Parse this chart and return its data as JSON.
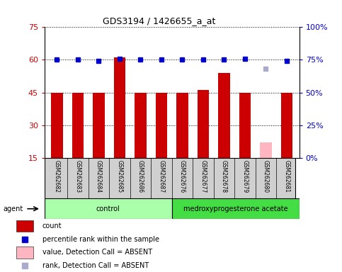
{
  "title": "GDS3194 / 1426655_a_at",
  "samples": [
    "GSM262682",
    "GSM262683",
    "GSM262684",
    "GSM262685",
    "GSM262686",
    "GSM262687",
    "GSM262676",
    "GSM262677",
    "GSM262678",
    "GSM262679",
    "GSM262680",
    "GSM262681"
  ],
  "bar_values": [
    45,
    45,
    45,
    61,
    45,
    45,
    45,
    46,
    54,
    45,
    22,
    45
  ],
  "bar_colors": [
    "#cc0000",
    "#cc0000",
    "#cc0000",
    "#cc0000",
    "#cc0000",
    "#cc0000",
    "#cc0000",
    "#cc0000",
    "#cc0000",
    "#cc0000",
    "#ffb6c1",
    "#cc0000"
  ],
  "rank_values": [
    75,
    75,
    74,
    76,
    75,
    75,
    75,
    75,
    75,
    76,
    68,
    74
  ],
  "rank_colors": [
    "#0000cc",
    "#0000cc",
    "#0000cc",
    "#0000cc",
    "#0000cc",
    "#0000cc",
    "#0000cc",
    "#0000cc",
    "#0000cc",
    "#0000cc",
    "#aaaacc",
    "#0000cc"
  ],
  "ylim_left": [
    15,
    75
  ],
  "ylim_right": [
    0,
    100
  ],
  "yticks_left": [
    15,
    30,
    45,
    60,
    75
  ],
  "ytick_labels_left": [
    "15",
    "30",
    "45",
    "60",
    "75"
  ],
  "yticks_right_vals": [
    0,
    25,
    50,
    75,
    100
  ],
  "ytick_labels_right": [
    "0%",
    "25%",
    "50%",
    "75%",
    "100%"
  ],
  "groups": [
    {
      "label": "control",
      "start": 0,
      "end": 5,
      "color": "#aaffaa"
    },
    {
      "label": "medroxyprogesterone acetate",
      "start": 6,
      "end": 11,
      "color": "#44dd44"
    }
  ],
  "agent_label": "agent",
  "sample_bg_color": "#d0d0d0",
  "plot_bg": "#ffffff",
  "left_axis_color": "#cc0000",
  "right_axis_color": "#0000cc",
  "legend": [
    {
      "label": "count",
      "color": "#cc0000",
      "type": "bar"
    },
    {
      "label": "percentile rank within the sample",
      "color": "#0000cc",
      "type": "square"
    },
    {
      "label": "value, Detection Call = ABSENT",
      "color": "#ffb6c1",
      "type": "bar"
    },
    {
      "label": "rank, Detection Call = ABSENT",
      "color": "#aaaacc",
      "type": "square"
    }
  ]
}
